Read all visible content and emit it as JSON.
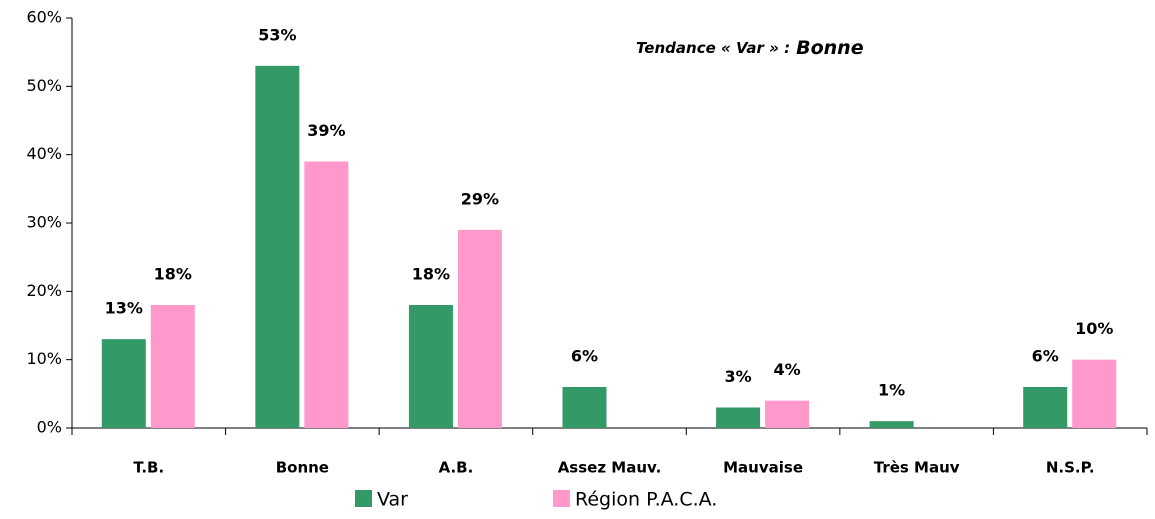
{
  "chart_data": {
    "type": "bar",
    "annotation": {
      "prefix": "Tendance « Var » :",
      "emphasis": "Bonne"
    },
    "categories": [
      "T.B.",
      "Bonne",
      "A.B.",
      "Assez Mauv.",
      "Mauvaise",
      "Très Mauv",
      "N.S.P."
    ],
    "series": [
      {
        "name": "Var",
        "color": "#339966",
        "values": [
          13,
          53,
          18,
          6,
          3,
          1,
          6
        ],
        "value_labels": [
          "13%",
          "53%",
          "18%",
          "6%",
          "3%",
          "1%",
          "6%"
        ]
      },
      {
        "name": "Région P.A.C.A.",
        "color": "#ff99cc",
        "values": [
          18,
          39,
          29,
          null,
          4,
          null,
          10
        ],
        "value_labels": [
          "18%",
          "39%",
          "29%",
          null,
          "4%",
          null,
          "10%"
        ]
      }
    ],
    "ylim": [
      0,
      60
    ],
    "yticks": [
      {
        "value": 0,
        "label": "0%"
      },
      {
        "value": 10,
        "label": "10%"
      },
      {
        "value": 20,
        "label": "20%"
      },
      {
        "value": 30,
        "label": "30%"
      },
      {
        "value": 40,
        "label": "40%"
      },
      {
        "value": 50,
        "label": "50%"
      },
      {
        "value": 60,
        "label": "60%"
      }
    ],
    "grid": false
  }
}
